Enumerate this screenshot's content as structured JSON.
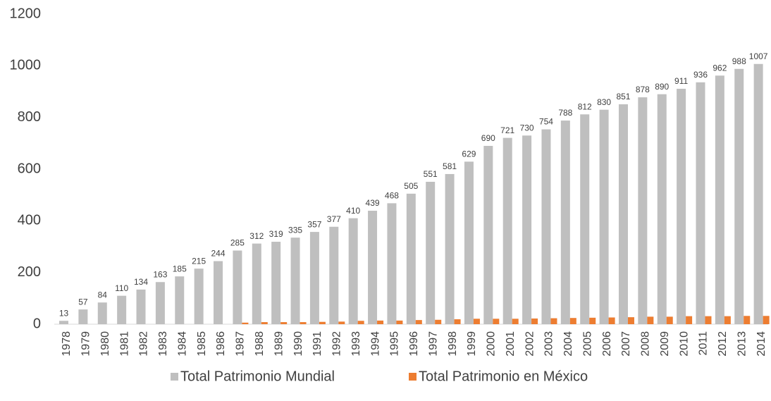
{
  "chart_data": {
    "type": "bar",
    "categories": [
      "1978",
      "1979",
      "1980",
      "1981",
      "1982",
      "1983",
      "1984",
      "1985",
      "1986",
      "1987",
      "1988",
      "1989",
      "1990",
      "1991",
      "1992",
      "1993",
      "1994",
      "1995",
      "1996",
      "1997",
      "1998",
      "1999",
      "2000",
      "2001",
      "2002",
      "2003",
      "2004",
      "2005",
      "2006",
      "2007",
      "2008",
      "2009",
      "2010",
      "2011",
      "2012",
      "2013",
      "2014"
    ],
    "series": [
      {
        "name": "Total Patrimonio Mundial",
        "color": "#bfbfbf",
        "values": [
          13,
          57,
          84,
          110,
          134,
          163,
          185,
          215,
          244,
          285,
          312,
          319,
          335,
          357,
          377,
          410,
          439,
          468,
          505,
          551,
          581,
          629,
          690,
          721,
          730,
          754,
          788,
          812,
          830,
          851,
          878,
          890,
          911,
          936,
          962,
          988,
          1007
        ]
      },
      {
        "name": "Total Patrimonio en México",
        "color": "#ed7d31",
        "values": [
          0,
          0,
          0,
          0,
          0,
          0,
          0,
          0,
          0,
          6,
          8,
          8,
          8,
          9,
          10,
          13,
          14,
          14,
          16,
          17,
          19,
          21,
          21,
          21,
          22,
          23,
          24,
          25,
          26,
          27,
          29,
          29,
          31,
          31,
          31,
          32,
          32
        ]
      }
    ],
    "ylim": [
      0,
      1200
    ],
    "yticks": [
      0,
      200,
      400,
      600,
      800,
      1000,
      1200
    ],
    "grid": false,
    "legend": "bottom"
  }
}
